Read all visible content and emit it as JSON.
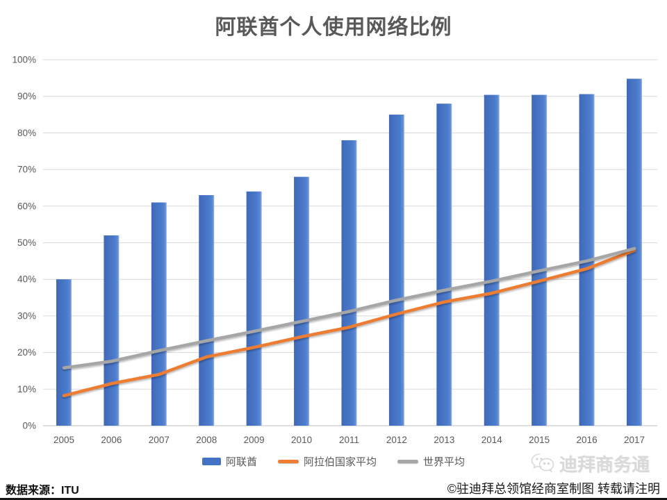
{
  "title": "阿联酋个人使用网络比例",
  "footer": {
    "source": "数据来源：ITU",
    "credit": "©驻迪拜总领馆经商室制图 转载请注明",
    "watermark": "迪拜商务通"
  },
  "colors": {
    "bar": "#4472C4",
    "bar_gradient": [
      "#4068B8",
      "#4C7CCC",
      "#5D8AD4",
      "#9AB5E4"
    ],
    "arab_line": "#ED7D31",
    "world_line": "#A6A6A6",
    "grid": "#D9D9D9",
    "axis_line": "#BFBFBF",
    "axis_text": "#595959",
    "title_text": "#595959"
  },
  "legend": {
    "items": [
      {
        "label": "阿联酋",
        "type": "bar",
        "color": "#4472C4"
      },
      {
        "label": "阿拉伯国家平均",
        "type": "line",
        "color": "#ED7D31"
      },
      {
        "label": "世界平均",
        "type": "line",
        "color": "#A6A6A6"
      }
    ]
  },
  "chart_data": {
    "type": "bar",
    "title": "阿联酋个人使用网络比例",
    "categories": [
      "2005",
      "2006",
      "2007",
      "2008",
      "2009",
      "2010",
      "2011",
      "2012",
      "2013",
      "2014",
      "2015",
      "2016",
      "2017"
    ],
    "series": [
      {
        "name": "阿联酋",
        "type": "bar",
        "color": "#4472C4",
        "values": [
          40,
          52,
          61,
          63,
          64,
          68,
          78,
          85,
          88,
          90.4,
          90.4,
          90.6,
          94.8
        ]
      },
      {
        "name": "阿拉伯国家平均",
        "type": "line",
        "color": "#ED7D31",
        "values": [
          8.2,
          11.5,
          14,
          18.8,
          21.4,
          24.3,
          26.9,
          30.5,
          33.8,
          36.2,
          39.5,
          42.9,
          47.9
        ]
      },
      {
        "name": "世界平均",
        "type": "line",
        "color": "#A6A6A6",
        "values": [
          15.8,
          17.6,
          20.5,
          23.2,
          25.8,
          28.5,
          31.2,
          34.3,
          37,
          39.5,
          42.3,
          45,
          48.4
        ]
      }
    ],
    "xlabel": "",
    "ylabel": "",
    "ylim": [
      0,
      100
    ],
    "ytick_step": 10,
    "ytick_labels": [
      "0%",
      "10%",
      "20%",
      "30%",
      "40%",
      "50%",
      "60%",
      "70%",
      "80%",
      "90%",
      "100%"
    ],
    "grid": true,
    "legend_position": "bottom"
  }
}
